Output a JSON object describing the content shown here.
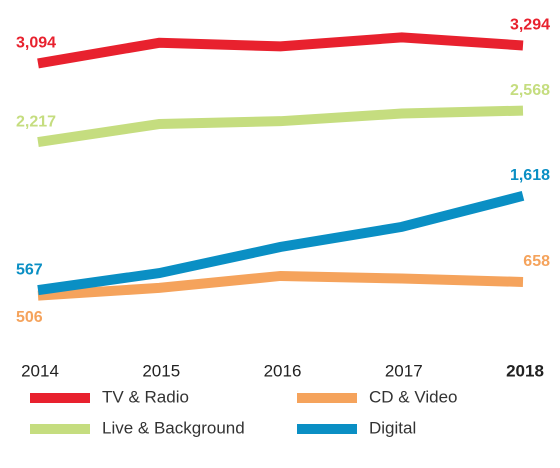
{
  "chart_data": {
    "type": "line",
    "categories": [
      "2014",
      "2015",
      "2016",
      "2017",
      "2018"
    ],
    "series": [
      {
        "name": "TV & Radio",
        "color": "#e8212e",
        "values": [
          3094,
          3324,
          3284,
          3384,
          3294
        ],
        "value_labels": [
          "3,094",
          null,
          null,
          null,
          "3,294"
        ]
      },
      {
        "name": "CD & Video",
        "color": "#f5a35c",
        "values": [
          506,
          592,
          725,
          696,
          658
        ]
      },
      {
        "name": "Live & Background",
        "color": "#c5dd7f",
        "values": [
          2217,
          2418,
          2450,
          2535,
          2568
        ],
        "value_labels": [
          "2,217",
          null,
          null,
          null,
          "2,568"
        ]
      },
      {
        "name": "Digital",
        "color": "#0a8fc4",
        "values": [
          567,
          757,
          1048,
          1272,
          1618
        ],
        "value_labels": [
          "567",
          null,
          null,
          null,
          "1,618"
        ]
      }
    ],
    "ylim": [
      0,
      3600
    ]
  }
}
